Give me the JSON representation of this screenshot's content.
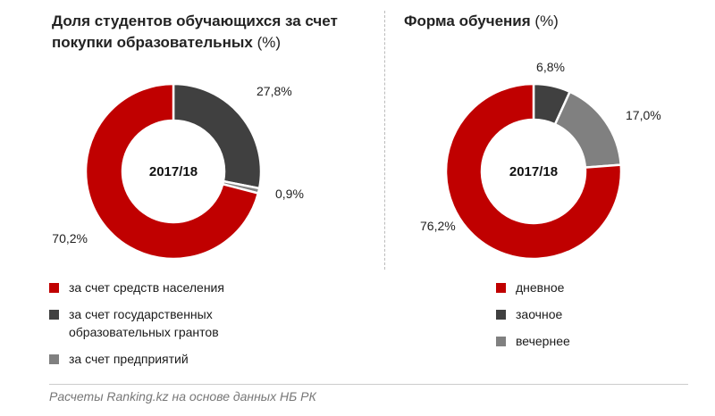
{
  "chart_data": [
    {
      "type": "pie",
      "subtype": "donut",
      "title": "Доля студентов обучающихся за счет покупки образовательных",
      "unit": "(%)",
      "center_label": "2017/18",
      "slices": [
        {
          "name": "за счет государственных образовательных грантов",
          "value": 27.8,
          "label": "27,8%",
          "color": "#404040"
        },
        {
          "name": "за счет предприятий",
          "value": 0.9,
          "label": "0,9%",
          "color": "#808080"
        },
        {
          "name": "за счет средств населения",
          "value": 70.2,
          "label": "70,2%",
          "color": "#c00000"
        }
      ],
      "legend": [
        {
          "label": "за счет средств населения",
          "color": "#c00000"
        },
        {
          "label": "за счет государственных образовательных грантов",
          "color": "#404040"
        },
        {
          "label": "за счет предприятий",
          "color": "#808080"
        }
      ]
    },
    {
      "type": "pie",
      "subtype": "donut",
      "title": "Форма обучения",
      "unit": "(%)",
      "center_label": "2017/18",
      "slices": [
        {
          "name": "заочное",
          "value": 6.8,
          "label": "6,8%",
          "color": "#404040"
        },
        {
          "name": "вечернее",
          "value": 17.0,
          "label": "17,0%",
          "color": "#808080"
        },
        {
          "name": "дневное",
          "value": 76.2,
          "label": "76,2%",
          "color": "#c00000"
        }
      ],
      "legend": [
        {
          "label": "дневное",
          "color": "#c00000"
        },
        {
          "label": "заочное",
          "color": "#404040"
        },
        {
          "label": "вечернее",
          "color": "#808080"
        }
      ]
    }
  ],
  "source": "Расчеты Ranking.kz на основе данных НБ РК"
}
